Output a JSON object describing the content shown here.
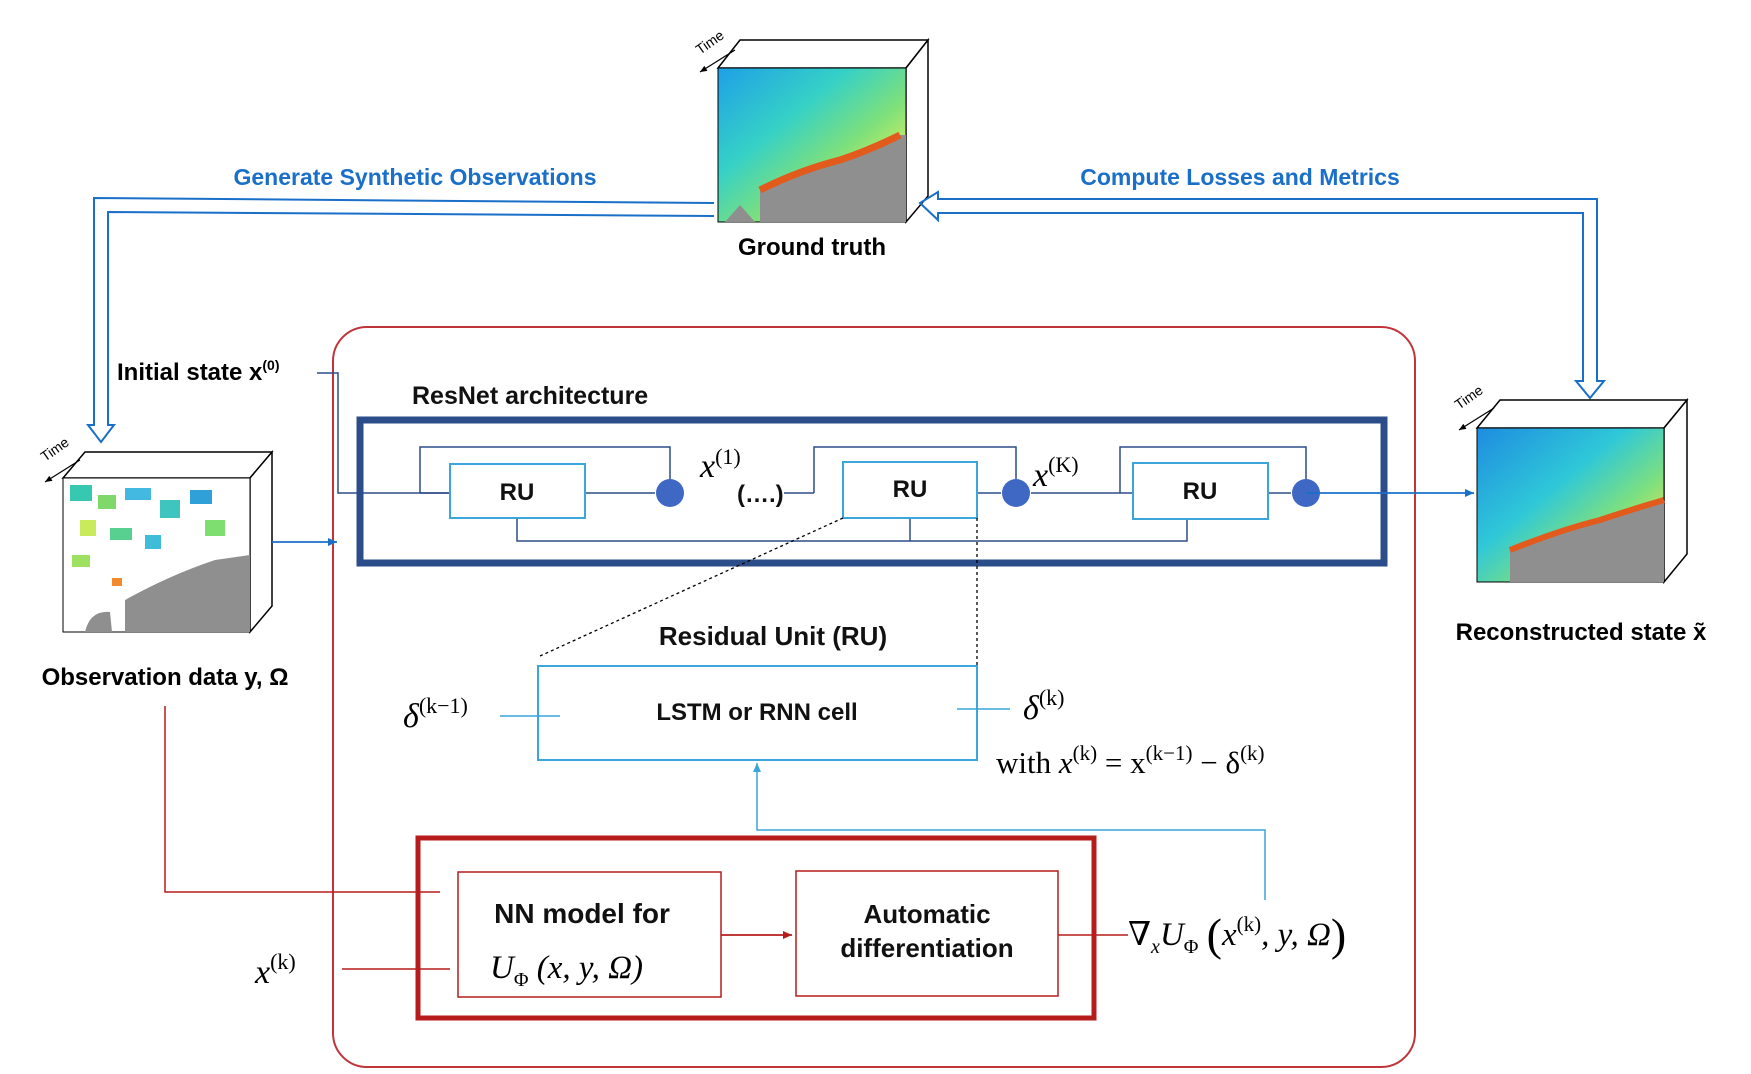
{
  "ground_truth": {
    "time": "Time",
    "label": "Ground truth"
  },
  "flows": {
    "left": "Generate Synthetic Observations",
    "right": "Compute Losses and Metrics"
  },
  "observation": {
    "time": "Time",
    "label": "Observation data y, Ω"
  },
  "reconstructed": {
    "time": "Time",
    "label": "Reconstructed state x̃"
  },
  "initial_state": {
    "base": "Initial state x",
    "sup": "(0)"
  },
  "resnet": {
    "title": "ResNet architecture",
    "ru1": "RU",
    "ru2": "RU",
    "ru3": "RU",
    "x1_base": "x",
    "x1_sup": "(1)",
    "ellipsis": "(….)",
    "xK_base": "x",
    "xK_sup": "(K)"
  },
  "residual_unit": {
    "title": "Residual Unit (RU)",
    "cell": "LSTM or RNN cell",
    "delta_in_base": "δ",
    "delta_in_sup": "(k−1)",
    "delta_out_base": "δ",
    "delta_out_sup": "(k)",
    "with_word": "with",
    "eq_x": "x",
    "eq_x_sup": "(k)",
    "eq_mid": " = x",
    "eq_mid_sup": "(k−1)",
    "eq_minus": " − δ",
    "eq_end_sup": "(k)"
  },
  "nn_block": {
    "nn_title": "NN model for",
    "nn_u": "U",
    "nn_sub": "Φ",
    "nn_args": "(x, y, Ω)",
    "auto_line1": "Automatic",
    "auto_line2": "differentiation",
    "xk_base": "x",
    "xk_sup": "(k)",
    "grad_nabla": "∇",
    "grad_sub_x": "x",
    "grad_u": "U",
    "grad_sub_phi": "Φ",
    "grad_open": "(",
    "grad_x": "x",
    "grad_x_sup": "(k)",
    "grad_rest": ", y, Ω",
    "grad_close": ")"
  },
  "colors": {
    "blue_arrow": "#1a6fc9",
    "red_frame": "#c0343b",
    "dark_red": "#b71c1c",
    "navy": "#2b4d8a",
    "cyan": "#3aa6dc",
    "node": "#3f67c4"
  }
}
